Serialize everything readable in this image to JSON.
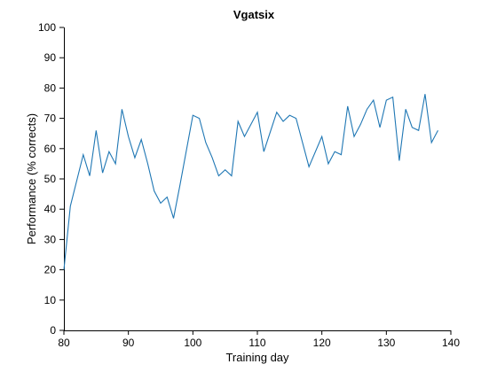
{
  "chart_data": {
    "type": "line",
    "title": "Vgatsix",
    "xlabel": "Training day",
    "ylabel": "Performance (% corrects)",
    "xlim": [
      80,
      140
    ],
    "ylim": [
      0,
      100
    ],
    "xticks": [
      80,
      90,
      100,
      110,
      120,
      130,
      140
    ],
    "yticks": [
      0,
      10,
      20,
      30,
      40,
      50,
      60,
      70,
      80,
      90,
      100
    ],
    "grid": false,
    "color": "#1f77b4",
    "x": [
      80,
      81,
      83,
      84,
      85,
      86,
      87,
      88,
      89,
      90,
      91,
      92,
      93,
      94,
      95,
      96,
      97,
      98,
      100,
      101,
      102,
      103,
      104,
      105,
      106,
      107,
      108,
      110,
      111,
      113,
      114,
      115,
      116,
      118,
      120,
      121,
      122,
      123,
      124,
      125,
      126,
      127,
      128,
      129,
      130,
      131,
      132,
      133,
      134,
      135,
      136,
      137,
      138
    ],
    "y": [
      20,
      41,
      58,
      51,
      66,
      52,
      59,
      55,
      73,
      64,
      57,
      63,
      55,
      46,
      42,
      44,
      37,
      48,
      71,
      70,
      62,
      57,
      51,
      53,
      51,
      69,
      64,
      72,
      59,
      72,
      69,
      71,
      70,
      54,
      64,
      55,
      59,
      58,
      74,
      64,
      68,
      73,
      76,
      67,
      76,
      77,
      56,
      73,
      67,
      66,
      78,
      62,
      66
    ]
  }
}
